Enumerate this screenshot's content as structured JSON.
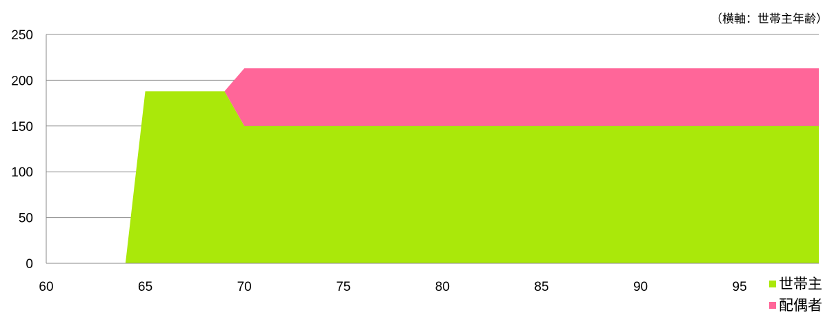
{
  "chart_data": {
    "type": "area",
    "stacked": true,
    "annotation": "（横軸：世帯主年齢）",
    "x": [
      64,
      65,
      69,
      70,
      99
    ],
    "series": [
      {
        "name": "世帯主",
        "values": [
          0,
          188,
          188,
          150,
          150
        ],
        "color": "#aae80a"
      },
      {
        "name": "配偶者",
        "values": [
          0,
          0,
          0,
          63,
          63
        ],
        "color": "#ff6699"
      }
    ],
    "xlim": [
      60,
      99
    ],
    "ylim": [
      0,
      250
    ],
    "xticks": [
      60,
      65,
      70,
      75,
      80,
      85,
      90,
      95
    ],
    "yticks": [
      0,
      50,
      100,
      150,
      200,
      250
    ],
    "grid": true,
    "legend_position": "bottom-right"
  }
}
